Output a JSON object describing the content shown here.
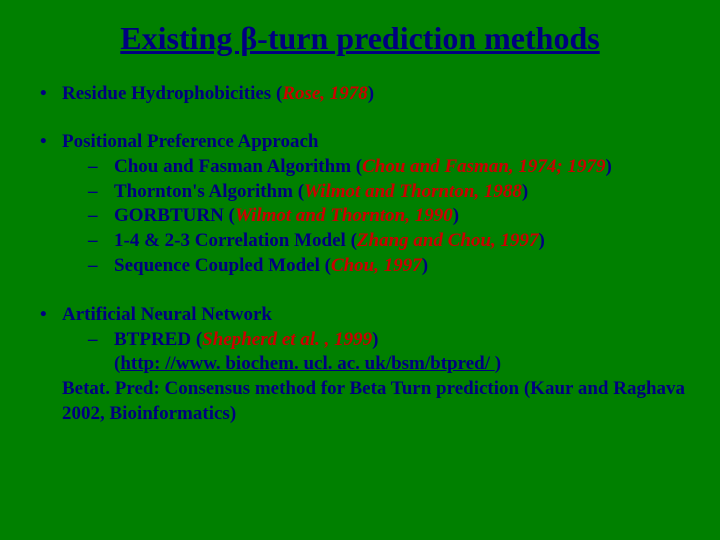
{
  "title": "Existing β-turn prediction methods",
  "items": [
    {
      "label_pre": "Residue Hydrophobicities (",
      "cite": "Rose, 1978",
      "label_post": ")"
    },
    {
      "label_pre": "Positional Preference Approach",
      "sub": [
        {
          "pre": "Chou and Fasman Algorithm (",
          "cite": "Chou and Fasman, 1974; 1979",
          "post": ")"
        },
        {
          "pre": "Thornton's Algorithm (",
          "cite": "Wilmot and Thornton, 1988",
          "post": ")"
        },
        {
          "pre": "GORBTURN (",
          "cite": "Wilmot and Thornton, 1990",
          "post": ")"
        },
        {
          "pre": "1-4 & 2-3 Correlation Model (",
          "cite": "Zhang and Chou, 1997",
          "post": ")"
        },
        {
          "pre": "Sequence Coupled Model (",
          "cite": "Chou, 1997",
          "post": ")"
        }
      ]
    },
    {
      "label_pre": "Artificial Neural Network",
      "sub": [
        {
          "pre": "BTPRED (",
          "cite": "Shepherd et al. , 1999",
          "post": ")"
        }
      ],
      "url_pre": "(",
      "url": "http: //www. biochem. ucl. ac. uk/bsm/btpred/ ",
      "url_post": ")",
      "trailing": "Betat. Pred: Consensus method for Beta Turn prediction (Kaur and Raghava 2002, Bioinformatics)"
    }
  ],
  "colors": {
    "background": "#008000",
    "text": "#000080",
    "cite": "#cc0000"
  }
}
